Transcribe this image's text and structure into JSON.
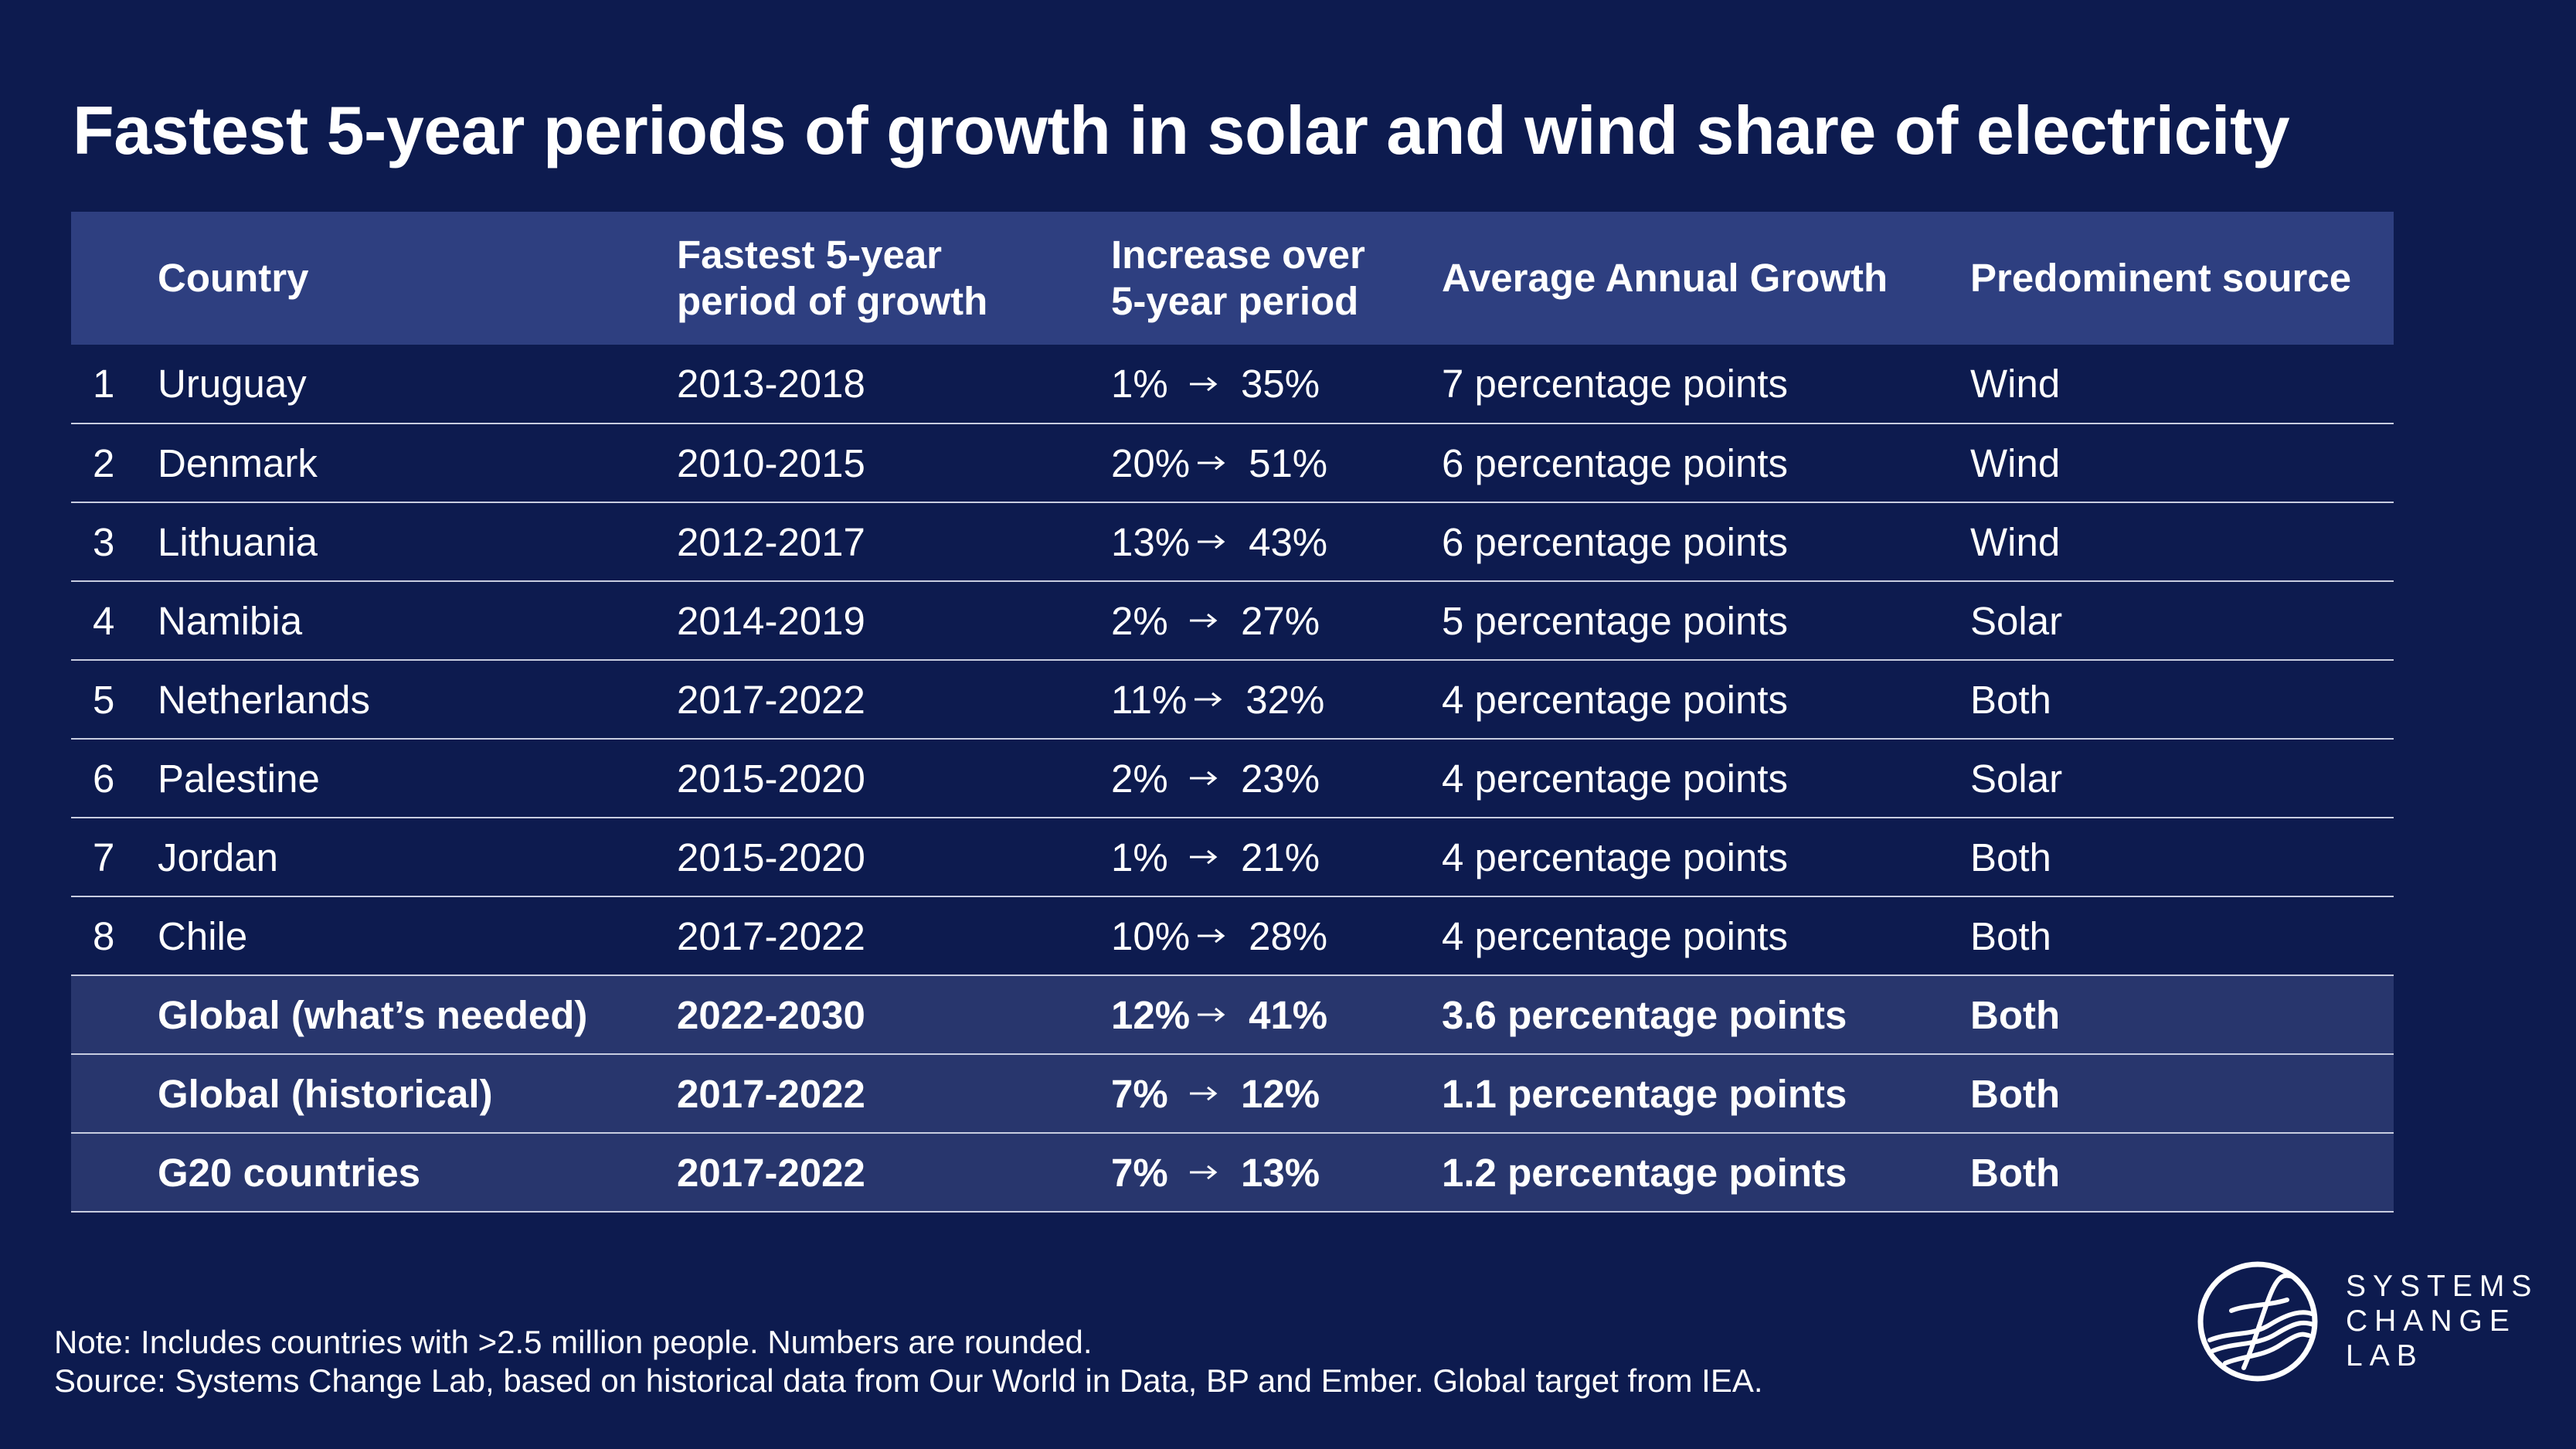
{
  "title": "Fastest 5-year periods of growth in solar and wind share of electricity",
  "chart_data": {
    "type": "table",
    "columns": [
      "",
      "Country",
      "Fastest 5-year period of growth",
      "Increase over 5-year period",
      "Average Annual Growth",
      "Predominent source"
    ],
    "header": {
      "country": "Country",
      "period_line1": "Fastest 5-year",
      "period_line2": "period of growth",
      "increase_line1": "Increase over",
      "increase_line2": "5-year period",
      "avg": "Average Annual Growth",
      "source": "Predominent source"
    },
    "rows": [
      {
        "rank": "1",
        "country": "Uruguay",
        "period": "2013-2018",
        "from": "1%",
        "to": "35%",
        "avg": "7 percentage points",
        "source": "Wind"
      },
      {
        "rank": "2",
        "country": "Denmark",
        "period": "2010-2015",
        "from": "20%",
        "to": "51%",
        "avg": "6 percentage points",
        "source": "Wind"
      },
      {
        "rank": "3",
        "country": "Lithuania",
        "period": "2012-2017",
        "from": "13%",
        "to": "43%",
        "avg": "6 percentage points",
        "source": "Wind"
      },
      {
        "rank": "4",
        "country": "Namibia",
        "period": "2014-2019",
        "from": "2%",
        "to": "27%",
        "avg": "5 percentage points",
        "source": "Solar"
      },
      {
        "rank": "5",
        "country": "Netherlands",
        "period": "2017-2022",
        "from": "11%",
        "to": "32%",
        "avg": "4 percentage points",
        "source": "Both"
      },
      {
        "rank": "6",
        "country": "Palestine",
        "period": "2015-2020",
        "from": "2%",
        "to": "23%",
        "avg": "4 percentage points",
        "source": "Solar"
      },
      {
        "rank": "7",
        "country": "Jordan",
        "period": "2015-2020",
        "from": "1%",
        "to": "21%",
        "avg": "4 percentage points",
        "source": "Both"
      },
      {
        "rank": "8",
        "country": "Chile",
        "period": "2017-2022",
        "from": "10%",
        "to": "28%",
        "avg": "4 percentage points",
        "source": "Both"
      }
    ],
    "summary_rows": [
      {
        "rank": "",
        "country": "Global (what’s needed)",
        "period": "2022-2030",
        "from": "12%",
        "to": "41%",
        "avg": "3.6 percentage points",
        "source": "Both"
      },
      {
        "rank": "",
        "country": "Global (historical)",
        "period": "2017-2022",
        "from": "7%",
        "to": "12%",
        "avg": "1.1 percentage points",
        "source": "Both"
      },
      {
        "rank": "",
        "country": "G20 countries",
        "period": "2017-2022",
        "from": "7%",
        "to": "13%",
        "avg": "1.2 percentage points",
        "source": "Both"
      }
    ]
  },
  "notes": {
    "note": "Note: Includes countries with >2.5 million people. Numbers are rounded.",
    "source": "Source: Systems Change Lab, based on historical data from Our World in Data, BP and Ember. Global target from IEA."
  },
  "logo": {
    "line1": "SYSTEMS",
    "line2": "CHANGE",
    "line3": "LAB"
  },
  "colors": {
    "background": "#0d1b4f",
    "header_row": "#2e3f80",
    "summary_row": "#28366d",
    "rule": "#c8cde0",
    "text": "#ffffff"
  }
}
